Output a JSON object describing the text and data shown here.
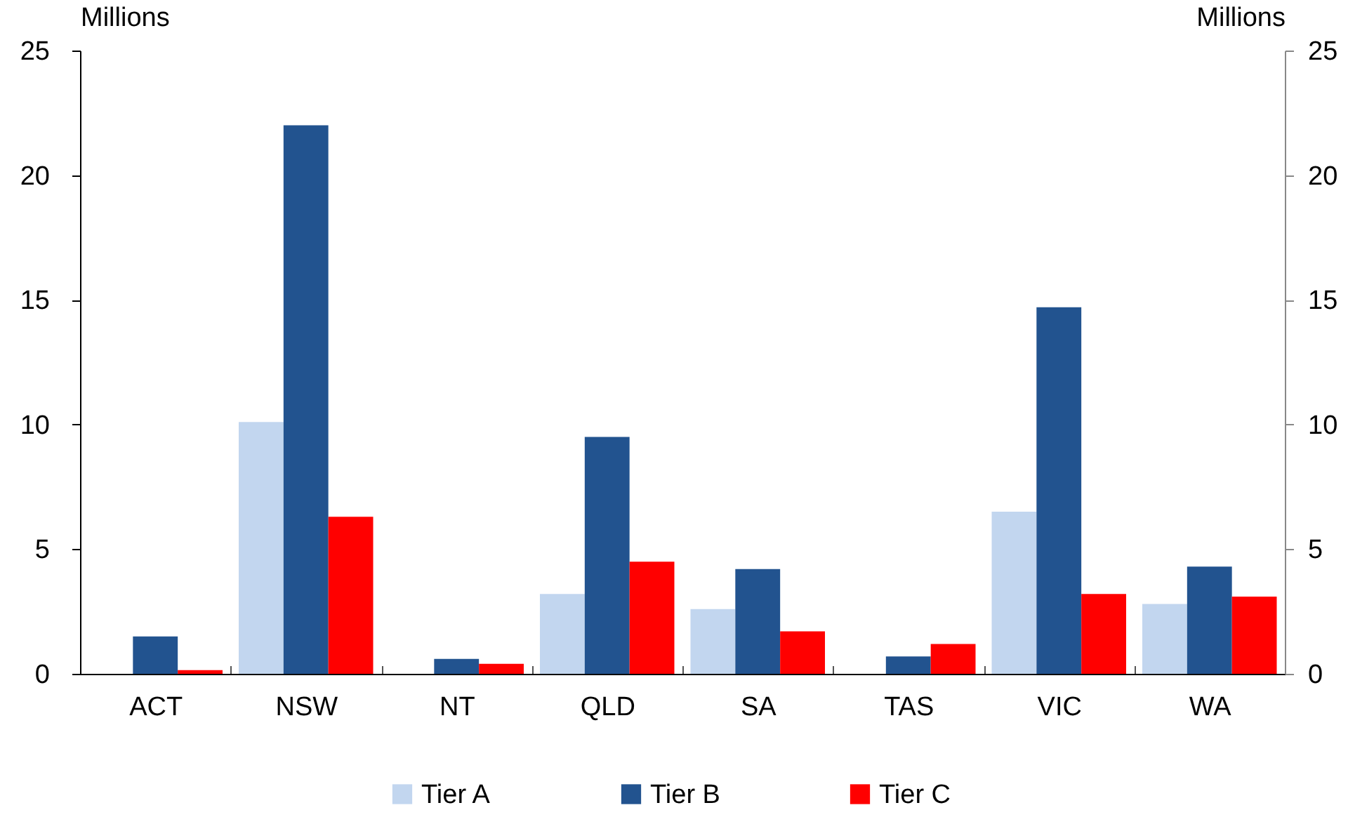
{
  "chart_data": {
    "type": "bar",
    "categories": [
      "ACT",
      "NSW",
      "NT",
      "QLD",
      "SA",
      "TAS",
      "VIC",
      "WA"
    ],
    "series": [
      {
        "name": "Tier A",
        "color": "#c2d6ef",
        "values": [
          null,
          10.1,
          null,
          3.2,
          2.6,
          null,
          6.5,
          2.8
        ]
      },
      {
        "name": "Tier B",
        "color": "#22538f",
        "values": [
          1.5,
          22.0,
          0.6,
          9.5,
          4.2,
          0.7,
          14.7,
          4.3
        ]
      },
      {
        "name": "Tier C",
        "color": "#ff0000",
        "values": [
          0.15,
          6.3,
          0.4,
          4.5,
          1.7,
          1.2,
          3.2,
          3.1
        ]
      }
    ],
    "ylabel": "Millions",
    "ylim": [
      0,
      25
    ],
    "yticks": [
      0,
      5,
      10,
      15,
      20,
      25
    ],
    "y2label": "Millions",
    "y2lim": [
      0,
      25
    ],
    "y2ticks": [
      0,
      5,
      10,
      15,
      20,
      25
    ],
    "legend": "bottom",
    "grid": false
  }
}
